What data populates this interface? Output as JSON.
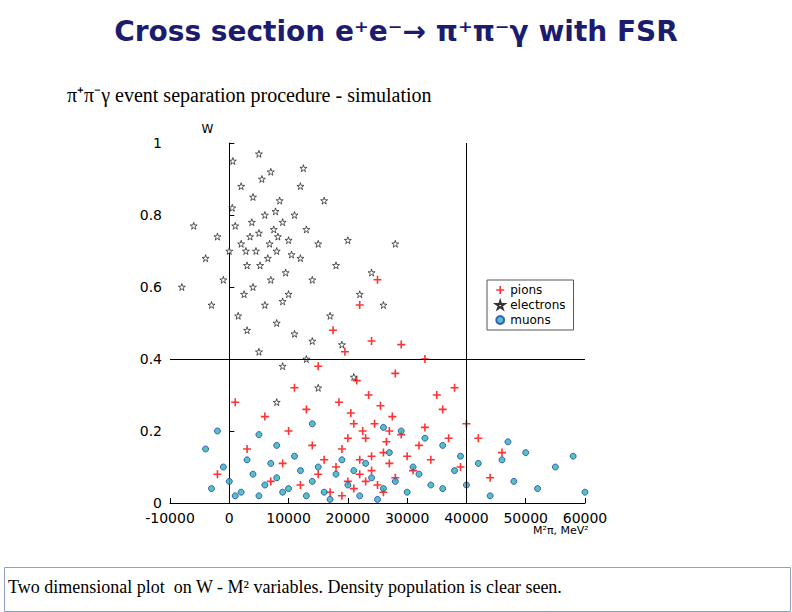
{
  "chart_data": {
    "type": "scatter",
    "title": "Cross section e⁺e⁻→ π⁺π⁻γ with FSR",
    "subtitle": "π⁺π⁻γ event separation procedure - simulation",
    "annotations": [
      "Two dimensional plot  on W - M² variables. Density population is clear seen."
    ],
    "x_label": "M²π, MeV²",
    "y_label": "W",
    "xlim": [
      -10000,
      60000
    ],
    "xticks": [
      -10000,
      0,
      10000,
      20000,
      30000,
      40000,
      50000,
      60000
    ],
    "ylim": [
      0,
      1
    ],
    "yticks": [
      0,
      0.2,
      0.4,
      0.6,
      0.8,
      1
    ],
    "grid": false,
    "legend": "right",
    "cut_lines": {
      "x": 40000,
      "y": 0.4
    },
    "series": [
      {
        "name": "pions",
        "color": "#ff0000",
        "marker": "plus",
        "values": [
          [
            15000,
            0.08
          ],
          [
            18000,
            0.1
          ],
          [
            20000,
            0.06
          ],
          [
            22000,
            0.12
          ],
          [
            24000,
            0.09
          ],
          [
            26000,
            0.14
          ],
          [
            19000,
            0.15
          ],
          [
            21000,
            0.04
          ],
          [
            23000,
            0.18
          ],
          [
            25000,
            0.05
          ],
          [
            17000,
            0.03
          ],
          [
            27000,
            0.11
          ],
          [
            28000,
            0.07
          ],
          [
            30000,
            0.13
          ],
          [
            16000,
            0.12
          ],
          [
            22500,
            0.2
          ],
          [
            24500,
            0.22
          ],
          [
            20500,
            0.25
          ],
          [
            26500,
            0.17
          ],
          [
            29000,
            0.19
          ],
          [
            18500,
            0.28
          ],
          [
            23500,
            0.3
          ],
          [
            21500,
            0.34
          ],
          [
            25500,
            0.27
          ],
          [
            27500,
            0.24
          ],
          [
            31000,
            0.09
          ],
          [
            32000,
            0.16
          ],
          [
            33000,
            0.21
          ],
          [
            34000,
            0.12
          ],
          [
            35000,
            0.3
          ],
          [
            36000,
            0.26
          ],
          [
            38000,
            0.32
          ],
          [
            40000,
            0.22
          ],
          [
            42000,
            0.18
          ],
          [
            14000,
            0.16
          ],
          [
            12000,
            0.05
          ],
          [
            10000,
            0.2
          ],
          [
            11000,
            0.32
          ],
          [
            13000,
            0.26
          ],
          [
            15000,
            0.38
          ],
          [
            19500,
            0.42
          ],
          [
            24000,
            0.45
          ],
          [
            28000,
            0.36
          ],
          [
            7000,
            0.06
          ],
          [
            9000,
            0.11
          ],
          [
            6000,
            0.24
          ],
          [
            3000,
            0.15
          ],
          [
            1000,
            0.28
          ],
          [
            -2000,
            0.08
          ],
          [
            17500,
            0.48
          ],
          [
            22000,
            0.55
          ],
          [
            25000,
            0.62
          ],
          [
            29000,
            0.44
          ],
          [
            33000,
            0.4
          ],
          [
            37000,
            0.18
          ],
          [
            39000,
            0.1
          ],
          [
            44000,
            0.07
          ],
          [
            46000,
            0.14
          ],
          [
            20000,
            0.18
          ],
          [
            22000,
            0.08
          ],
          [
            24000,
            0.13
          ],
          [
            26000,
            0.03
          ],
          [
            23000,
            0.06
          ],
          [
            19000,
            0.02
          ],
          [
            27000,
            0.2
          ],
          [
            21000,
            0.22
          ]
        ]
      },
      {
        "name": "electrons",
        "color": "#000000",
        "marker": "star",
        "values": [
          [
            2000,
            0.72
          ],
          [
            5000,
            0.75
          ],
          [
            8000,
            0.7
          ],
          [
            6000,
            0.8
          ],
          [
            3000,
            0.66
          ],
          [
            9000,
            0.78
          ],
          [
            7000,
            0.62
          ],
          [
            4000,
            0.85
          ],
          [
            10000,
            0.73
          ],
          [
            1000,
            0.77
          ],
          [
            12000,
            0.68
          ],
          [
            5500,
            0.9
          ],
          [
            2500,
            0.58
          ],
          [
            8500,
            0.84
          ],
          [
            11000,
            0.8
          ],
          [
            6500,
            0.68
          ],
          [
            3500,
            0.74
          ],
          [
            9500,
            0.64
          ],
          [
            7500,
            0.76
          ],
          [
            4500,
            0.7
          ],
          [
            0,
            0.7
          ],
          [
            -2000,
            0.74
          ],
          [
            13000,
            0.76
          ],
          [
            14000,
            0.62
          ],
          [
            15000,
            0.72
          ],
          [
            6000,
            0.55
          ],
          [
            8000,
            0.5
          ],
          [
            3000,
            0.48
          ],
          [
            10000,
            0.58
          ],
          [
            12000,
            0.88
          ],
          [
            2000,
            0.88
          ],
          [
            7000,
            0.92
          ],
          [
            5000,
            0.97
          ],
          [
            -1000,
            0.62
          ],
          [
            -4000,
            0.68
          ],
          [
            -6000,
            0.77
          ],
          [
            16000,
            0.84
          ],
          [
            18000,
            0.66
          ],
          [
            20000,
            0.73
          ],
          [
            22000,
            0.58
          ],
          [
            17000,
            0.52
          ],
          [
            1500,
            0.52
          ],
          [
            4000,
            0.6
          ],
          [
            9000,
            0.56
          ],
          [
            11000,
            0.47
          ],
          [
            14000,
            0.45
          ],
          [
            -3000,
            0.55
          ],
          [
            500,
            0.82
          ],
          [
            6800,
            0.72
          ],
          [
            5200,
            0.66
          ],
          [
            3800,
            0.78
          ],
          [
            7800,
            0.81
          ],
          [
            10500,
            0.69
          ],
          [
            2800,
            0.7
          ],
          [
            8200,
            0.74
          ],
          [
            24000,
            0.64
          ],
          [
            26000,
            0.55
          ],
          [
            19000,
            0.44
          ],
          [
            13000,
            0.4
          ],
          [
            9000,
            0.38
          ],
          [
            5000,
            0.42
          ],
          [
            15000,
            0.32
          ],
          [
            21000,
            0.35
          ],
          [
            8000,
            0.28
          ],
          [
            -8000,
            0.6
          ],
          [
            28000,
            0.72
          ],
          [
            12500,
            0.93
          ],
          [
            600,
            0.95
          ]
        ]
      },
      {
        "name": "muons",
        "color": "#2ab5a5",
        "marker": "circle",
        "values": [
          [
            -3000,
            0.04
          ],
          [
            0,
            0.06
          ],
          [
            2000,
            0.03
          ],
          [
            4000,
            0.08
          ],
          [
            6000,
            0.05
          ],
          [
            8000,
            0.07
          ],
          [
            10000,
            0.04
          ],
          [
            12000,
            0.09
          ],
          [
            14000,
            0.06
          ],
          [
            16000,
            0.03
          ],
          [
            18000,
            0.08
          ],
          [
            20000,
            0.05
          ],
          [
            22000,
            0.02
          ],
          [
            24000,
            0.07
          ],
          [
            26000,
            0.04
          ],
          [
            28000,
            0.06
          ],
          [
            30000,
            0.03
          ],
          [
            32000,
            0.08
          ],
          [
            34000,
            0.05
          ],
          [
            36000,
            0.04
          ],
          [
            -1000,
            0.1
          ],
          [
            3000,
            0.12
          ],
          [
            7000,
            0.11
          ],
          [
            11000,
            0.13
          ],
          [
            15000,
            0.1
          ],
          [
            19000,
            0.12
          ],
          [
            23000,
            0.11
          ],
          [
            27000,
            0.14
          ],
          [
            31000,
            0.1
          ],
          [
            1000,
            0.02
          ],
          [
            5000,
            0.02
          ],
          [
            9000,
            0.03
          ],
          [
            13000,
            0.02
          ],
          [
            17000,
            0.01
          ],
          [
            21000,
            0.09
          ],
          [
            25000,
            0.01
          ],
          [
            -2000,
            0.2
          ],
          [
            5000,
            0.19
          ],
          [
            14000,
            0.22
          ],
          [
            29000,
            0.2
          ],
          [
            36000,
            0.16
          ],
          [
            38000,
            0.09
          ],
          [
            40000,
            0.05
          ],
          [
            42000,
            0.11
          ],
          [
            44000,
            0.02
          ],
          [
            46000,
            0.12
          ],
          [
            48000,
            0.06
          ],
          [
            50000,
            0.14
          ],
          [
            52000,
            0.04
          ],
          [
            55000,
            0.1
          ],
          [
            58000,
            0.13
          ],
          [
            60000,
            0.03
          ],
          [
            33000,
            0.18
          ],
          [
            39000,
            0.13
          ],
          [
            47000,
            0.17
          ],
          [
            -4000,
            0.15
          ],
          [
            8000,
            0.16
          ],
          [
            26000,
            0.21
          ]
        ]
      }
    ]
  }
}
